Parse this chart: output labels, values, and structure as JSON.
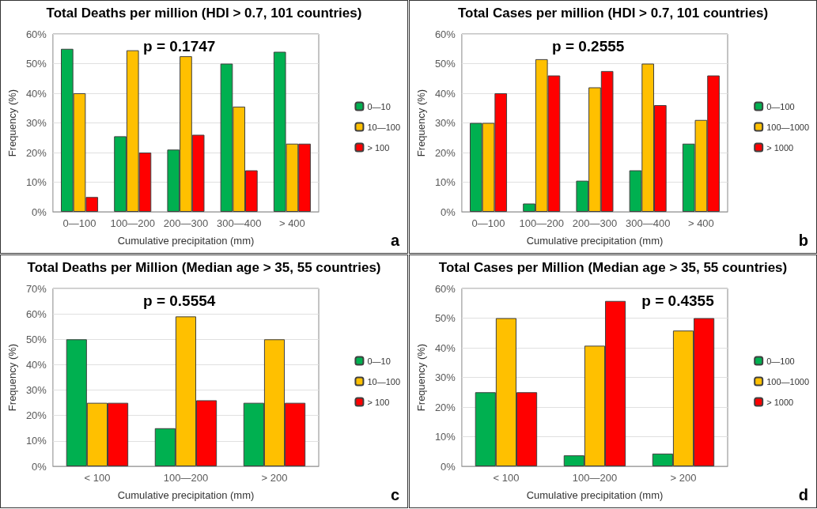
{
  "chart_data": [
    {
      "type": "bar",
      "title": "Total Deaths per million (HDI > 0.7, 101 countries)",
      "xlabel": "Cumulative precipitation (mm)",
      "ylabel": "Frequency (%)",
      "annotations": [
        "p = 0.1747",
        "a"
      ],
      "categories": [
        "0—100",
        "100—200",
        "200—300",
        "300—400",
        "> 400"
      ],
      "series": [
        {
          "name": "0—10",
          "color": "#00b050",
          "values": [
            55,
            25.5,
            21,
            50,
            54
          ]
        },
        {
          "name": "10—100",
          "color": "#ffc000",
          "values": [
            40,
            54.5,
            52.5,
            35.5,
            23
          ]
        },
        {
          "name": "> 100",
          "color": "#ff0000",
          "values": [
            5,
            20,
            26,
            14,
            23
          ]
        }
      ],
      "ylim": [
        0,
        60
      ],
      "yticks": [
        {
          "value": 0,
          "label": "0%"
        },
        {
          "value": 10,
          "label": "10%"
        },
        {
          "value": 20,
          "label": "20%"
        },
        {
          "value": 30,
          "label": "30%"
        },
        {
          "value": 40,
          "label": "40%"
        },
        {
          "value": 50,
          "label": "50%"
        },
        {
          "value": 60,
          "label": "60%"
        }
      ],
      "grid": "y",
      "legend": "right"
    },
    {
      "type": "bar",
      "title": "Total Cases per million (HDI > 0.7, 101 countries)",
      "xlabel": "Cumulative precipitation (mm)",
      "ylabel": "Frequency (%)",
      "annotations": [
        "p = 0.2555",
        "b"
      ],
      "categories": [
        "0—100",
        "100—200",
        "200—300",
        "300—400",
        "> 400"
      ],
      "series": [
        {
          "name": "0—100",
          "color": "#00b050",
          "values": [
            30,
            2.8,
            10.5,
            14,
            23
          ]
        },
        {
          "name": "100—1000",
          "color": "#ffc000",
          "values": [
            30,
            51.5,
            42,
            50,
            31
          ]
        },
        {
          "name": "> 1000",
          "color": "#ff0000",
          "values": [
            40,
            46,
            47.5,
            36,
            46
          ]
        }
      ],
      "ylim": [
        0,
        60
      ],
      "yticks": [
        {
          "value": 0,
          "label": "0%"
        },
        {
          "value": 10,
          "label": "10%"
        },
        {
          "value": 20,
          "label": "20%"
        },
        {
          "value": 30,
          "label": "30%"
        },
        {
          "value": 40,
          "label": "40%"
        },
        {
          "value": 50,
          "label": "50%"
        },
        {
          "value": 60,
          "label": "60%"
        }
      ],
      "grid": "y",
      "legend": "right"
    },
    {
      "type": "bar",
      "title": "Total Deaths per Million (Median age > 35, 55 countries)",
      "xlabel": "Cumulative precipitation (mm)",
      "ylabel": "Frequency (%)",
      "annotations": [
        "p = 0.5554",
        "c"
      ],
      "categories": [
        "< 100",
        "100—200",
        "> 200"
      ],
      "series": [
        {
          "name": "0—10",
          "color": "#00b050",
          "values": [
            50,
            15,
            25
          ]
        },
        {
          "name": "10—100",
          "color": "#ffc000",
          "values": [
            25,
            59,
            50
          ]
        },
        {
          "name": "> 100",
          "color": "#ff0000",
          "values": [
            25,
            26,
            25
          ]
        }
      ],
      "ylim": [
        0,
        70
      ],
      "yticks": [
        {
          "value": 0,
          "label": "0%"
        },
        {
          "value": 10,
          "label": "10%"
        },
        {
          "value": 20,
          "label": "20%"
        },
        {
          "value": 30,
          "label": "30%"
        },
        {
          "value": 40,
          "label": "40%"
        },
        {
          "value": 50,
          "label": "50%"
        },
        {
          "value": 60,
          "label": "60%"
        },
        {
          "value": 70,
          "label": "70%"
        }
      ],
      "grid": "y",
      "legend": "right"
    },
    {
      "type": "bar",
      "title": "Total Cases per Million (Median age > 35, 55 countries)",
      "xlabel": "Cumulative precipitation (mm)",
      "ylabel": "Frequency (%)",
      "annotations": [
        "p = 0.4355",
        "d"
      ],
      "categories": [
        "< 100",
        "100—200",
        "> 200"
      ],
      "series": [
        {
          "name": "0—100",
          "color": "#00b050",
          "values": [
            25,
            3.7,
            4.3
          ]
        },
        {
          "name": "100—1000",
          "color": "#ffc000",
          "values": [
            50,
            40.7,
            45.8
          ]
        },
        {
          "name": "> 1000",
          "color": "#ff0000",
          "values": [
            25,
            55.8,
            50
          ]
        }
      ],
      "ylim": [
        0,
        60
      ],
      "yticks": [
        {
          "value": 0,
          "label": "0%"
        },
        {
          "value": 10,
          "label": "10%"
        },
        {
          "value": 20,
          "label": "20%"
        },
        {
          "value": 30,
          "label": "30%"
        },
        {
          "value": 40,
          "label": "40%"
        },
        {
          "value": 50,
          "label": "50%"
        },
        {
          "value": 60,
          "label": "60%"
        }
      ],
      "grid": "y",
      "legend": "right"
    }
  ]
}
